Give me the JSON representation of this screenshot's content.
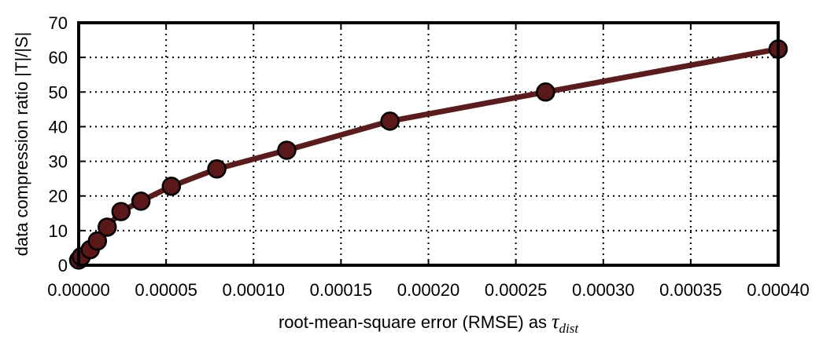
{
  "chart_data": {
    "type": "line",
    "title": "",
    "xlabel": "root-mean-square error (RMSE) as ",
    "xlabel_symbol": "τ",
    "xlabel_subscript": "dist",
    "ylabel": "data compression ratio |T|/|S|",
    "xlim": [
      0,
      0.0004
    ],
    "ylim": [
      0,
      70
    ],
    "xticks": [
      "0.00000",
      "0.00005",
      "0.00010",
      "0.00015",
      "0.00020",
      "0.00025",
      "0.00030",
      "0.00035",
      "0.00040"
    ],
    "yticks": [
      "0",
      "10",
      "20",
      "30",
      "40",
      "50",
      "60",
      "70"
    ],
    "grid": true,
    "series": [
      {
        "color": "#5a1c1c",
        "marker_fill": "#5a1818",
        "points": [
          {
            "x": 0.0,
            "y": 1.5
          },
          {
            "x": 1.5e-06,
            "y": 2.5
          },
          {
            "x": 6.6e-06,
            "y": 4.5
          },
          {
            "x": 1.07e-05,
            "y": 7.0
          },
          {
            "x": 1.63e-05,
            "y": 11.0
          },
          {
            "x": 2.42e-05,
            "y": 15.5
          },
          {
            "x": 3.56e-05,
            "y": 18.5
          },
          {
            "x": 5.3e-05,
            "y": 22.8
          },
          {
            "x": 7.9e-05,
            "y": 27.8
          },
          {
            "x": 0.000119,
            "y": 33.2
          },
          {
            "x": 0.000178,
            "y": 41.6
          },
          {
            "x": 0.000267,
            "y": 50.0
          },
          {
            "x": 0.0004,
            "y": 62.4
          }
        ]
      }
    ]
  }
}
